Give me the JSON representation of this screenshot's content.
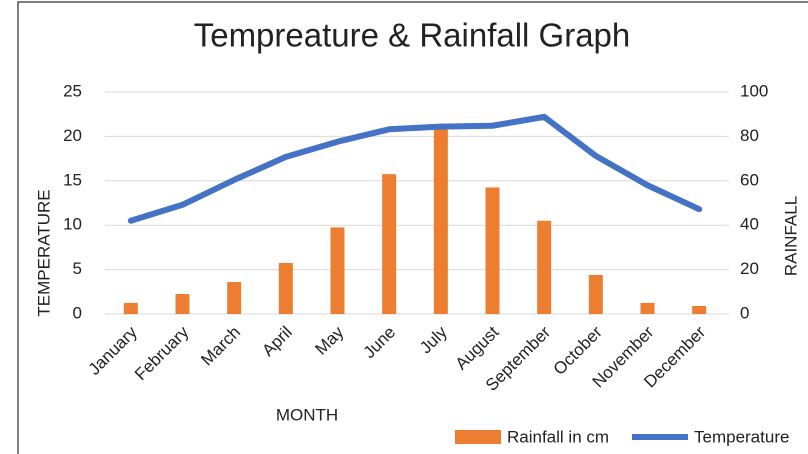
{
  "chart_data": {
    "type": "combo",
    "title": "Tempreature & Rainfall Graph",
    "x_label": "MONTH",
    "y_label": "TEMPERATURE",
    "y2_label": "RAINFALL",
    "categories": [
      "January",
      "February",
      "March",
      "April",
      "May",
      "June",
      "July",
      "August",
      "September",
      "October",
      "November",
      "December"
    ],
    "series": [
      {
        "name": "Rainfall in cm",
        "type": "bar",
        "axis": "y2",
        "color": "#ed7d31",
        "values": [
          5,
          9,
          14.4,
          23,
          39,
          63,
          84,
          57,
          42,
          17.6,
          5,
          3.6
        ]
      },
      {
        "name": "Temperature",
        "type": "line",
        "axis": "y",
        "color": "#4472c4",
        "values": [
          10.5,
          12.3,
          15.1,
          17.7,
          19.4,
          20.8,
          21.1,
          21.2,
          22.2,
          17.8,
          14.5,
          11.8
        ]
      }
    ],
    "ylim": [
      0,
      25
    ],
    "yticks": [
      0,
      5,
      10,
      15,
      20,
      25
    ],
    "y2lim": [
      0,
      100
    ],
    "y2ticks": [
      0,
      20,
      40,
      60,
      80,
      100
    ],
    "grid": true,
    "legend": "bottom"
  }
}
